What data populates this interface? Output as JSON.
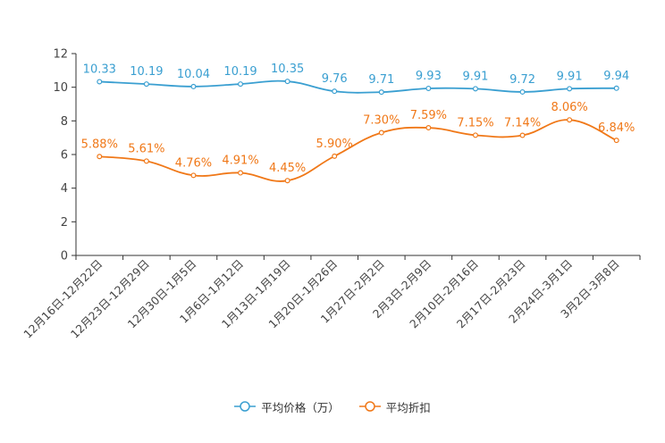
{
  "chart_data": {
    "type": "line",
    "categories": [
      "12月16日-12月22日",
      "12月23日-12月29日",
      "12月30日-1月5日",
      "1月6日-1月12日",
      "1月13日-1月19日",
      "1月20日-1月26日",
      "1月27日-2月2日",
      "2月3日-2月9日",
      "2月10日-2月16日",
      "2月17日-2月23日",
      "2月24日-3月1日",
      "3月2日-3月8日"
    ],
    "series": [
      {
        "name": "平均价格（万）",
        "color": "#3a9fd1",
        "values": [
          10.33,
          10.19,
          10.04,
          10.19,
          10.35,
          9.76,
          9.71,
          9.93,
          9.91,
          9.72,
          9.91,
          9.94
        ],
        "labels": [
          "10.33",
          "10.19",
          "10.04",
          "10.19",
          "10.35",
          "9.76",
          "9.71",
          "9.93",
          "9.91",
          "9.72",
          "9.91",
          "9.94"
        ]
      },
      {
        "name": "平均折扣",
        "color": "#f07818",
        "values": [
          5.88,
          5.61,
          4.76,
          4.91,
          4.45,
          5.9,
          7.3,
          7.59,
          7.15,
          7.14,
          8.06,
          6.84
        ],
        "labels": [
          "5.88%",
          "5.61%",
          "4.76%",
          "4.91%",
          "4.45%",
          "5.90%",
          "7.30%",
          "7.59%",
          "7.15%",
          "7.14%",
          "8.06%",
          "6.84%"
        ]
      }
    ],
    "yticks": [
      "0",
      "2",
      "4",
      "6",
      "8",
      "10",
      "12"
    ],
    "ylim": [
      0,
      12
    ],
    "title": "",
    "xlabel": "",
    "ylabel": "",
    "legend_position": "bottom-center"
  }
}
